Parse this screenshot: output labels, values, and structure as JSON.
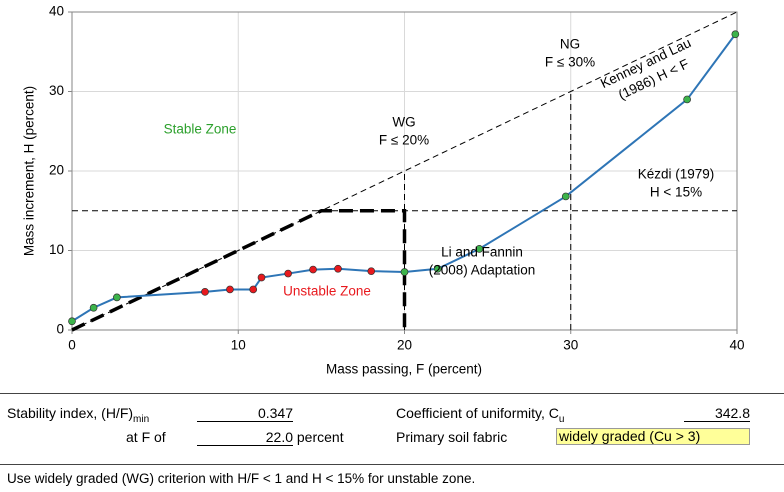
{
  "chart_data": {
    "type": "line",
    "xlabel": "Mass passing, F (percent)",
    "ylabel": "Mass increment, H (percent)",
    "xlim": [
      0,
      40
    ],
    "ylim": [
      0,
      40
    ],
    "xticks": [
      0,
      10,
      20,
      30,
      40
    ],
    "yticks": [
      0,
      10,
      20,
      30,
      40
    ],
    "grid": true,
    "series": [
      {
        "color": "#2e75b6",
        "x": [
          0,
          1.3,
          2.7,
          8,
          9.5,
          10.9,
          11.4,
          13,
          14.5,
          16,
          18,
          20,
          22,
          24.5,
          29.7,
          37,
          39.9
        ],
        "values": [
          1.1,
          2.8,
          4.1,
          4.8,
          5.1,
          5.1,
          6.6,
          7.1,
          7.6,
          7.7,
          7.4,
          7.3,
          7.7,
          10.2,
          16.8,
          29,
          37.2
        ],
        "marker_colors": [
          "#3cb44b",
          "#3cb44b",
          "#3cb44b",
          "#e8191e",
          "#e8191e",
          "#e8191e",
          "#e8191e",
          "#e8191e",
          "#e8191e",
          "#e8191e",
          "#e8191e",
          "#3cb44b",
          "#3cb44b",
          "#3cb44b",
          "#3cb44b",
          "#3cb44b",
          "#3cb44b"
        ]
      },
      {
        "color": "#000000",
        "dash": "thin",
        "x": [
          0,
          40
        ],
        "values": [
          0,
          40
        ]
      },
      {
        "color": "#000000",
        "dash": "thin",
        "x": [
          0,
          40
        ],
        "values": [
          15,
          15
        ]
      },
      {
        "color": "#000000",
        "dash": "thin",
        "x": [
          20,
          20
        ],
        "values": [
          0,
          20
        ]
      },
      {
        "color": "#000000",
        "dash": "thin",
        "x": [
          30,
          30
        ],
        "values": [
          0,
          30
        ]
      },
      {
        "color": "#000000",
        "dash": "thick",
        "x": [
          0,
          15,
          20,
          20
        ],
        "values": [
          0,
          15,
          15,
          0
        ]
      }
    ],
    "annotations": [
      {
        "lines": [
          "Stable Zone"
        ],
        "color": "#2ca02c"
      },
      {
        "lines": [
          "Unstable Zone"
        ],
        "color": "#e8191e"
      },
      {
        "lines": [
          "WG",
          "F ≤ 20%"
        ],
        "color": "#000000"
      },
      {
        "lines": [
          "NG",
          "F ≤ 30%"
        ],
        "color": "#000000"
      },
      {
        "lines": [
          "Kenney and Lau",
          "(1986) H < F"
        ],
        "color": "#000000"
      },
      {
        "lines": [
          "Kézdi (1979)",
          "H < 15%"
        ],
        "color": "#000000"
      },
      {
        "lines": [
          "Li and Fannin",
          "(2008) Adaptation"
        ],
        "color": "#000000"
      }
    ]
  },
  "form": {
    "stability_label": {
      "text": "Stability index, (H/F)",
      "sub": "min"
    },
    "stability_value": "0.347",
    "at_f_label": "at F of",
    "at_f_value": "22.0",
    "at_f_unit": "percent",
    "cu_label": {
      "text": "Coefficient of uniformity, C",
      "sub": "u"
    },
    "cu_value": "342.8",
    "fabric_label": "Primary soil fabric",
    "fabric_value": "widely graded (Cu > 3)",
    "note": "Use widely graded (WG) criterion with H/F < 1 and H < 15% for unstable zone."
  }
}
